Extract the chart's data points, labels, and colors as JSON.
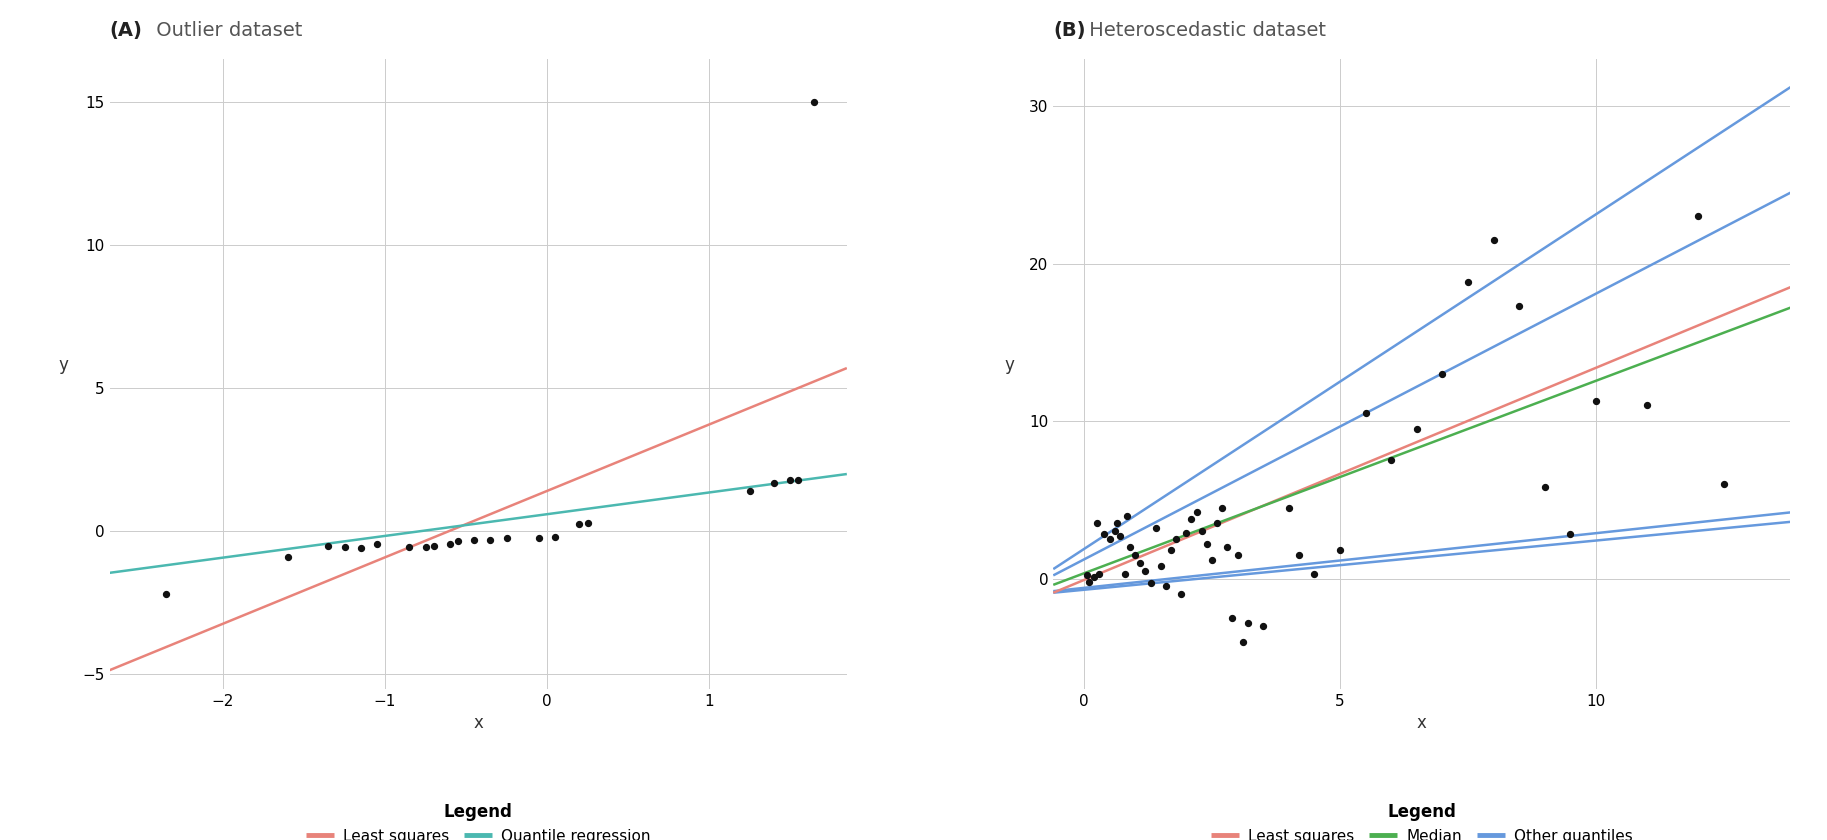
{
  "plot_A": {
    "title_bold": "(A)",
    "title_normal": " Outlier dataset",
    "xlabel": "x",
    "ylabel": "y",
    "xlim": [
      -2.7,
      1.85
    ],
    "ylim": [
      -5.5,
      16.5
    ],
    "yticks": [
      -5,
      0,
      5,
      10,
      15
    ],
    "xticks": [
      -2,
      -1,
      0,
      1
    ],
    "points_x": [
      -2.35,
      -1.6,
      -1.35,
      -1.25,
      -1.15,
      -1.05,
      -0.85,
      -0.75,
      -0.7,
      -0.6,
      -0.55,
      -0.45,
      -0.35,
      -0.25,
      -0.05,
      0.05,
      0.2,
      0.25,
      1.25,
      1.4,
      1.5,
      1.55,
      1.65
    ],
    "points_y": [
      -2.2,
      -0.9,
      -0.5,
      -0.55,
      -0.6,
      -0.45,
      -0.55,
      -0.55,
      -0.5,
      -0.45,
      -0.35,
      -0.3,
      -0.3,
      -0.25,
      -0.25,
      -0.2,
      0.25,
      0.3,
      1.4,
      1.7,
      1.8,
      1.8,
      15.0
    ],
    "ls_line": {
      "x": [
        -2.7,
        1.85
      ],
      "y": [
        -4.85,
        5.7
      ],
      "color": "#E8837A",
      "lw": 1.8
    },
    "qr_line": {
      "x": [
        -2.7,
        1.85
      ],
      "y": [
        -1.45,
        2.0
      ],
      "color": "#4BB8B0",
      "lw": 1.8
    },
    "legend_items": [
      {
        "label": "Least squares",
        "color": "#E8837A"
      },
      {
        "label": "Quantile regression",
        "color": "#4BB8B0"
      }
    ]
  },
  "plot_B": {
    "title_bold": "(B)",
    "title_normal": " Heteroscedastic dataset",
    "xlabel": "x",
    "ylabel": "y",
    "xlim": [
      -0.6,
      13.8
    ],
    "ylim": [
      -7.0,
      33.0
    ],
    "yticks": [
      0,
      10,
      20,
      30
    ],
    "xticks": [
      0,
      5,
      10
    ],
    "points_x": [
      0.05,
      0.1,
      0.2,
      0.25,
      0.3,
      0.4,
      0.5,
      0.6,
      0.65,
      0.7,
      0.8,
      0.85,
      0.9,
      1.0,
      1.1,
      1.2,
      1.3,
      1.4,
      1.5,
      1.6,
      1.7,
      1.8,
      1.9,
      2.0,
      2.1,
      2.2,
      2.3,
      2.4,
      2.5,
      2.6,
      2.7,
      2.8,
      2.9,
      3.0,
      3.1,
      3.2,
      3.5,
      4.0,
      4.2,
      4.5,
      5.0,
      5.5,
      6.0,
      6.5,
      7.0,
      7.5,
      8.0,
      8.5,
      9.0,
      9.5,
      10.0,
      11.0,
      12.0,
      12.5
    ],
    "points_y": [
      0.2,
      -0.2,
      0.1,
      3.5,
      0.3,
      2.8,
      2.5,
      3.0,
      3.5,
      2.7,
      0.3,
      4.0,
      2.0,
      1.5,
      1.0,
      0.5,
      -0.3,
      3.2,
      0.8,
      -0.5,
      1.8,
      2.5,
      -1.0,
      2.9,
      3.8,
      4.2,
      3.0,
      2.2,
      1.2,
      3.5,
      4.5,
      2.0,
      -2.5,
      1.5,
      -4.0,
      -2.8,
      -3.0,
      4.5,
      1.5,
      0.3,
      1.8,
      10.5,
      7.5,
      9.5,
      13.0,
      18.8,
      21.5,
      17.3,
      5.8,
      2.8,
      11.3,
      11.0,
      23.0,
      6.0
    ],
    "ls_line": {
      "x": [
        -0.6,
        13.8
      ],
      "y": [
        -0.9,
        18.5
      ],
      "color": "#E8837A",
      "lw": 1.8
    },
    "median_line": {
      "x": [
        -0.6,
        13.8
      ],
      "y": [
        -0.4,
        17.2
      ],
      "color": "#4CAF50",
      "lw": 1.8
    },
    "quantile_lines": [
      {
        "x": [
          -0.6,
          13.8
        ],
        "y": [
          0.6,
          31.2
        ],
        "color": "#6699DD",
        "lw": 1.8
      },
      {
        "x": [
          -0.6,
          13.8
        ],
        "y": [
          0.2,
          24.5
        ],
        "color": "#6699DD",
        "lw": 1.8
      },
      {
        "x": [
          -0.6,
          13.8
        ],
        "y": [
          -0.8,
          4.2
        ],
        "color": "#6699DD",
        "lw": 1.8
      },
      {
        "x": [
          -0.6,
          13.8
        ],
        "y": [
          -0.9,
          3.6
        ],
        "color": "#6699DD",
        "lw": 1.8
      }
    ],
    "legend_items": [
      {
        "label": "Least squares",
        "color": "#E8837A"
      },
      {
        "label": "Median",
        "color": "#4CAF50"
      },
      {
        "label": "Other quantiles",
        "color": "#6699DD"
      }
    ]
  },
  "bg_color": "#FFFFFF",
  "grid_color": "#CCCCCC",
  "point_color": "#111111",
  "point_size": 18,
  "title_fontsize": 14,
  "label_fontsize": 12,
  "tick_fontsize": 11,
  "legend_fontsize": 11,
  "legend_title_fontsize": 12
}
